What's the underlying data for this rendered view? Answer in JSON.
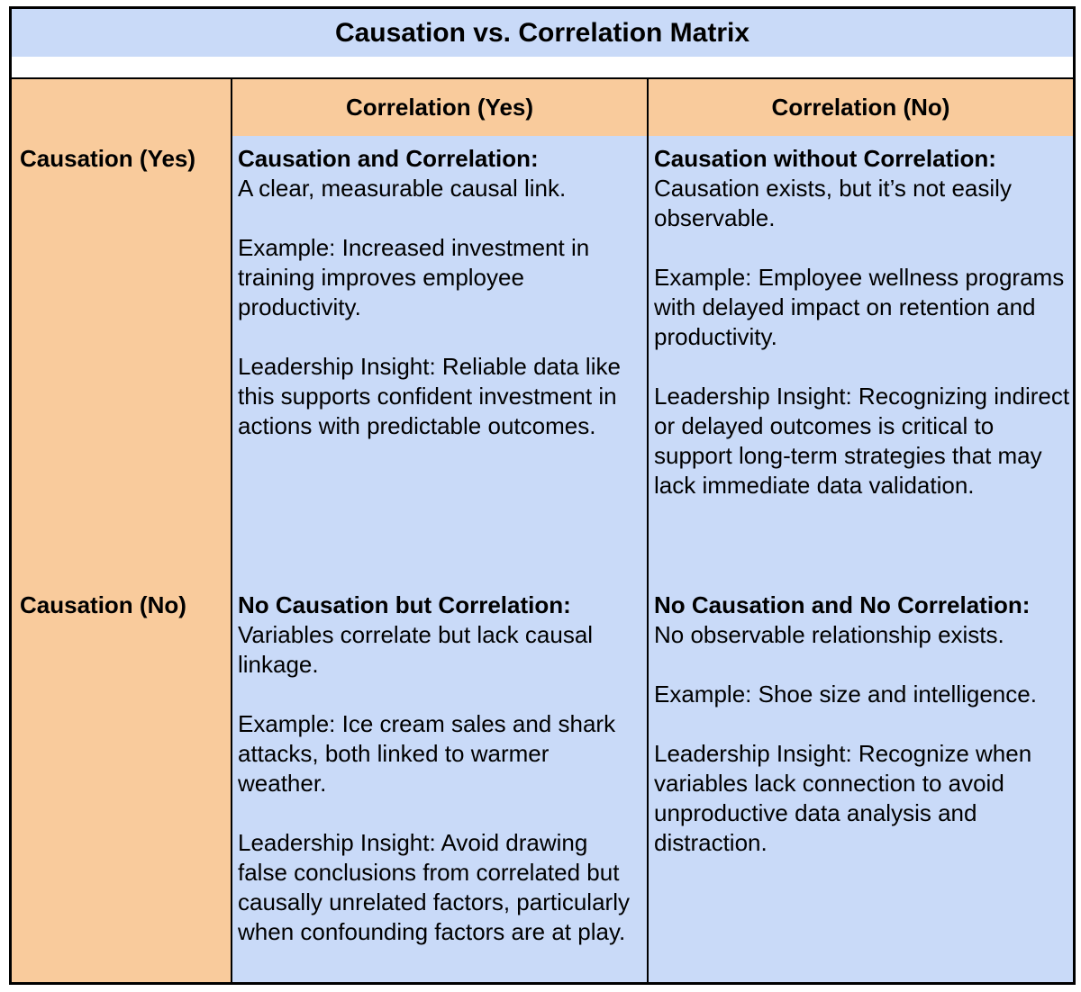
{
  "title": "Causation vs. Correlation Matrix",
  "colors": {
    "title_bg": "#c9daf8",
    "header_bg": "#f9cb9c",
    "cell_bg": "#c9daf8",
    "border": "#000000"
  },
  "columns": {
    "yes": "Correlation (Yes)",
    "no": "Correlation (No)"
  },
  "rows": {
    "yes": "Causation (Yes)",
    "no": "Causation (No)"
  },
  "cells": {
    "yes_yes": {
      "heading": "Causation and Correlation:",
      "description": "A clear, measurable causal link.",
      "example": "Example: Increased investment in training improves employee productivity.",
      "insight": "Leadership Insight: Reliable data like this supports confident investment in actions with predictable outcomes."
    },
    "yes_no": {
      "heading": "Causation without Correlation:",
      "description": "Causation exists, but it’s not easily observable.",
      "example": "Example: Employee wellness programs with delayed impact on retention and productivity.",
      "insight": "Leadership Insight: Recognizing indirect or delayed outcomes is critical to support long-term strategies that may lack immediate data validation."
    },
    "no_yes": {
      "heading": "No Causation but Correlation:",
      "description": "Variables correlate but lack causal linkage.",
      "example": "Example: Ice cream sales and shark attacks, both linked to warmer weather.",
      "insight": "Leadership Insight: Avoid drawing false conclusions from correlated but causally unrelated factors, particularly when confounding factors are at play."
    },
    "no_no": {
      "heading": "No Causation and No Correlation:",
      "description": "No observable relationship exists.",
      "example": "Example: Shoe size and intelligence.",
      "insight": "Leadership Insight: Recognize when variables lack connection to avoid unproductive data analysis and distraction."
    }
  }
}
